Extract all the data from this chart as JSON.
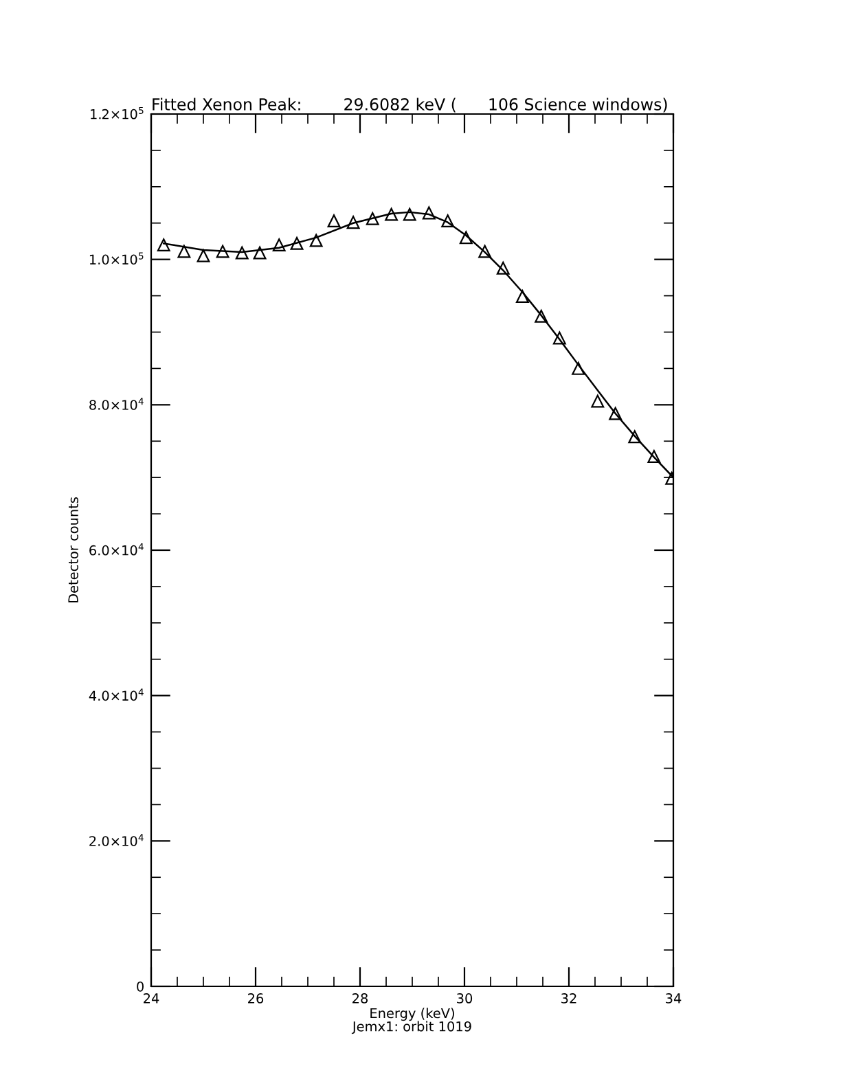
{
  "chart_data": {
    "type": "scatter",
    "title": "Fitted Xenon Peak:        29.6082 keV (      106 Science windows)",
    "xlabel": "Energy (keV)",
    "ylabel": "Detector counts",
    "annotations": [
      "Jemx1: orbit 1019"
    ],
    "xlim": [
      24,
      34
    ],
    "xticks": [
      24,
      26,
      28,
      30,
      32,
      34
    ],
    "ylim": [
      0,
      120000
    ],
    "yticks": [
      0,
      {
        "value": 20000,
        "label": "2.0×10$^{4}$"
      },
      {
        "value": 40000,
        "label": "4.0×10$^{4}$"
      },
      {
        "value": 60000,
        "label": "6.0×10$^{4}$"
      },
      {
        "value": 80000,
        "label": "8.0×10$^{4}$"
      },
      {
        "value": 100000,
        "label": "1.0×10$^{5}$"
      },
      {
        "value": 120000,
        "label": "1.2×10$^{5}$"
      }
    ],
    "grid": false,
    "series": [
      {
        "marker": "triangle",
        "color": "#000000",
        "x": [
          24.24,
          24.63,
          25.0,
          25.37,
          25.74,
          26.08,
          26.45,
          26.79,
          27.16,
          27.5,
          27.87,
          28.24,
          28.6,
          28.95,
          29.32,
          29.68,
          30.03,
          30.39,
          30.74,
          31.11,
          31.47,
          31.82,
          32.18,
          32.55,
          32.89,
          33.26,
          33.63,
          33.97
        ],
        "values": [
          102000,
          101100,
          100500,
          101100,
          100900,
          100900,
          102000,
          102200,
          102600,
          105300,
          105100,
          105600,
          106200,
          106200,
          106400,
          105300,
          103000,
          101100,
          98800,
          94900,
          92200,
          89200,
          85000,
          80500,
          78800,
          75600,
          72900,
          69900
        ]
      },
      {
        "type": "line",
        "marker": "none",
        "line_style": "solid",
        "color": "#000000",
        "x": [
          24.24,
          25.0,
          25.74,
          26.45,
          27.16,
          27.87,
          28.6,
          28.95,
          29.32,
          29.68,
          30.03,
          30.39,
          30.74,
          31.11,
          31.47,
          31.82,
          32.18,
          32.55,
          32.89,
          33.26,
          33.63,
          34.0
        ],
        "values": [
          102200,
          101300,
          101000,
          101600,
          103000,
          105000,
          106300,
          106500,
          106200,
          105100,
          103300,
          101000,
          98500,
          95500,
          92300,
          89000,
          85500,
          82000,
          78800,
          75700,
          72800,
          70000
        ]
      }
    ]
  }
}
